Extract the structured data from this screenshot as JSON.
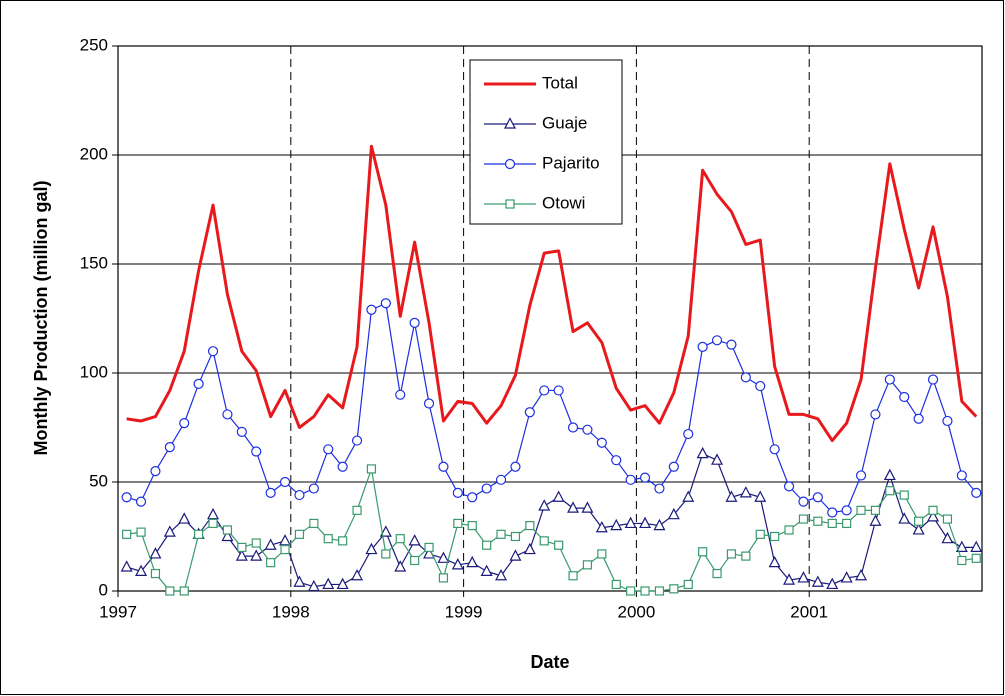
{
  "chart_data": {
    "type": "line",
    "x_label": "Date",
    "y_label": "Monthly Production (million gal)",
    "categories": [
      "1997",
      null,
      null,
      null,
      null,
      null,
      null,
      null,
      null,
      null,
      null,
      null,
      "1998",
      null,
      null,
      null,
      null,
      null,
      null,
      null,
      null,
      null,
      null,
      null,
      "1999",
      null,
      null,
      null,
      null,
      null,
      null,
      null,
      null,
      null,
      null,
      null,
      "2000",
      null,
      null,
      null,
      null,
      null,
      null,
      null,
      null,
      null,
      null,
      null,
      "2001",
      null,
      null,
      null,
      null,
      null,
      null,
      null,
      null,
      null,
      null,
      null
    ],
    "series": [
      {
        "name": "Total",
        "color": "#e8191c",
        "marker": "none",
        "width": 3,
        "values": [
          79,
          78,
          80,
          92,
          110,
          147,
          177,
          136,
          110,
          101,
          80,
          92,
          75,
          80,
          90,
          84,
          112,
          204,
          177,
          126,
          160,
          123,
          78,
          87,
          86,
          77,
          85,
          99,
          131,
          155,
          156,
          119,
          123,
          114,
          93,
          83,
          85,
          77,
          91,
          117,
          193,
          182,
          174,
          159,
          161,
          103,
          81,
          81,
          79,
          69,
          77,
          97,
          148,
          196,
          166,
          139,
          167,
          135,
          87,
          80
        ]
      },
      {
        "name": "Guaje",
        "color": "#1a1a7a",
        "marker": "triangle",
        "width": 1.2,
        "values": [
          11,
          9,
          17,
          27,
          33,
          26,
          35,
          25,
          16,
          16,
          21,
          23,
          4,
          2,
          3,
          3,
          7,
          19,
          27,
          11,
          23,
          17,
          15,
          12,
          13,
          9,
          7,
          16,
          19,
          39,
          43,
          38,
          38,
          29,
          30,
          31,
          31,
          30,
          35,
          43,
          63,
          60,
          43,
          45,
          43,
          13,
          5,
          6,
          4,
          3,
          6,
          7,
          32,
          53,
          33,
          28,
          34,
          24,
          20,
          20
        ]
      },
      {
        "name": "Pajarito",
        "color": "#1c2fe0",
        "marker": "circle",
        "width": 1.2,
        "values": [
          43,
          41,
          55,
          66,
          77,
          95,
          110,
          81,
          73,
          64,
          45,
          50,
          44,
          47,
          65,
          57,
          69,
          129,
          132,
          90,
          123,
          86,
          57,
          45,
          43,
          47,
          51,
          57,
          82,
          92,
          92,
          75,
          74,
          68,
          60,
          51,
          52,
          47,
          57,
          72,
          112,
          115,
          113,
          98,
          94,
          65,
          48,
          41,
          43,
          36,
          37,
          53,
          81,
          97,
          89,
          79,
          97,
          78,
          53,
          45
        ]
      },
      {
        "name": "Otowi",
        "color": "#3a9a6e",
        "marker": "square",
        "width": 1.2,
        "values": [
          26,
          27,
          8,
          0,
          0,
          26,
          31,
          28,
          20,
          22,
          13,
          19,
          26,
          31,
          24,
          23,
          37,
          56,
          17,
          24,
          14,
          20,
          6,
          31,
          30,
          21,
          26,
          25,
          30,
          23,
          21,
          7,
          12,
          17,
          3,
          0,
          0,
          0,
          1,
          3,
          18,
          8,
          17,
          16,
          26,
          25,
          28,
          33,
          32,
          31,
          31,
          37,
          37,
          46,
          44,
          32,
          37,
          33,
          14,
          15
        ]
      }
    ],
    "ylim": [
      0,
      250
    ],
    "yticks": [
      0,
      50,
      100,
      150,
      200,
      250
    ],
    "grid": true
  }
}
